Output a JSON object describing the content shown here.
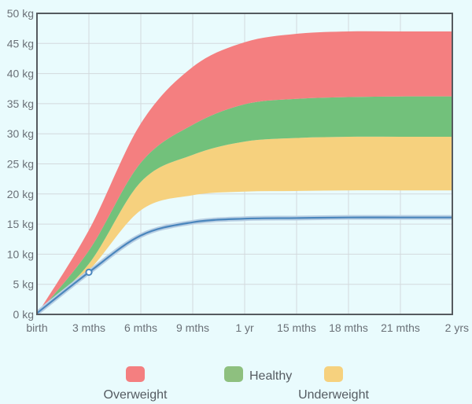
{
  "chart_data": {
    "type": "area",
    "x": [
      "birth",
      "3 mths",
      "6 mths",
      "9 mths",
      "1 yr",
      "15 mths",
      "18 mths",
      "21 mths",
      "2 yrs"
    ],
    "x_months": [
      0,
      3,
      6,
      9,
      12,
      15,
      18,
      21,
      24
    ],
    "ylim": [
      0,
      50
    ],
    "y_ticks": [
      "0 kg",
      "5 kg",
      "10 kg",
      "15 kg",
      "20 kg",
      "25 kg",
      "30 kg",
      "35 kg",
      "40 kg",
      "45 kg",
      "50 kg"
    ],
    "grid": true,
    "bands": [
      {
        "name": "Underweight",
        "color": "#f6d17e",
        "lower": [
          0.0,
          7.3,
          17.3,
          19.8,
          20.4,
          20.5,
          20.6,
          20.6,
          20.6
        ],
        "upper": [
          0.0,
          8.4,
          22.0,
          26.5,
          28.7,
          29.3,
          29.5,
          29.5,
          29.5
        ]
      },
      {
        "name": "Healthy",
        "color": "#72c17b",
        "lower": [
          0.0,
          8.4,
          22.0,
          26.5,
          28.7,
          29.3,
          29.5,
          29.5,
          29.5
        ],
        "upper": [
          0.0,
          10.6,
          25.2,
          31.5,
          34.9,
          35.8,
          36.1,
          36.2,
          36.2
        ]
      },
      {
        "name": "Overweight",
        "color": "#f47f80",
        "lower": [
          0.0,
          10.6,
          25.2,
          31.5,
          34.9,
          35.8,
          36.1,
          36.2,
          36.2
        ],
        "upper": [
          0.0,
          14.0,
          31.7,
          41.1,
          45.2,
          46.6,
          47.0,
          47.0,
          47.0
        ]
      }
    ],
    "series": [
      {
        "values": [
          0.2,
          7.0,
          13.1,
          15.3,
          15.9,
          16.0,
          16.1,
          16.1,
          16.1
        ],
        "color": "#4a86bd"
      }
    ],
    "marked_point": {
      "x": "3 mths",
      "y": 7.0
    },
    "legend": {
      "placement": "bottom",
      "items": [
        {
          "label": "Overweight",
          "color": "#f47f80"
        },
        {
          "label": "Healthy",
          "color": "#8ec07f"
        },
        {
          "label": "Underweight",
          "color": "#f6d17e"
        }
      ]
    }
  }
}
